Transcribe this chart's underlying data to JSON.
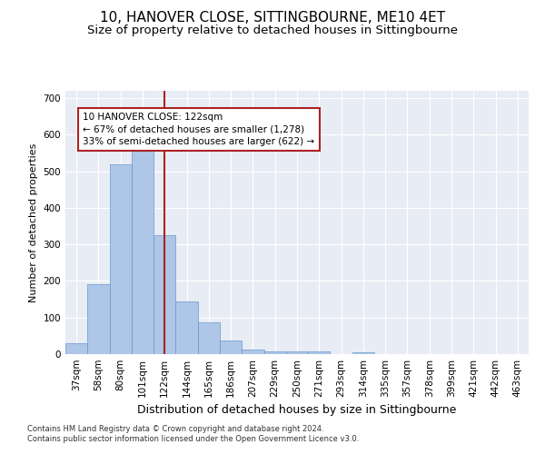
{
  "title": "10, HANOVER CLOSE, SITTINGBOURNE, ME10 4ET",
  "subtitle": "Size of property relative to detached houses in Sittingbourne",
  "xlabel": "Distribution of detached houses by size in Sittingbourne",
  "ylabel": "Number of detached properties",
  "footer_line1": "Contains HM Land Registry data © Crown copyright and database right 2024.",
  "footer_line2": "Contains public sector information licensed under the Open Government Licence v3.0.",
  "categories": [
    "37sqm",
    "58sqm",
    "80sqm",
    "101sqm",
    "122sqm",
    "144sqm",
    "165sqm",
    "186sqm",
    "207sqm",
    "229sqm",
    "250sqm",
    "271sqm",
    "293sqm",
    "314sqm",
    "335sqm",
    "357sqm",
    "378sqm",
    "399sqm",
    "421sqm",
    "442sqm",
    "463sqm"
  ],
  "values": [
    30,
    190,
    520,
    560,
    325,
    143,
    87,
    38,
    13,
    8,
    8,
    8,
    0,
    5,
    0,
    0,
    0,
    0,
    0,
    0,
    0
  ],
  "bar_color": "#aec6e8",
  "bar_edge_color": "#6699cc",
  "vline_x_idx": 4,
  "vline_color": "#aa2222",
  "annotation_line1": "10 HANOVER CLOSE: 122sqm",
  "annotation_line2": "← 67% of detached houses are smaller (1,278)",
  "annotation_line3": "33% of semi-detached houses are larger (622) →",
  "annotation_box_color": "white",
  "annotation_box_edge": "#aa2222",
  "ylim": [
    0,
    720
  ],
  "yticks": [
    0,
    100,
    200,
    300,
    400,
    500,
    600,
    700
  ],
  "background_color": "#e8ecf5",
  "grid_color": "white",
  "title_fontsize": 11,
  "subtitle_fontsize": 9.5,
  "xlabel_fontsize": 9,
  "ylabel_fontsize": 8,
  "tick_fontsize": 7.5,
  "annotation_fontsize": 7.5,
  "footer_fontsize": 6
}
